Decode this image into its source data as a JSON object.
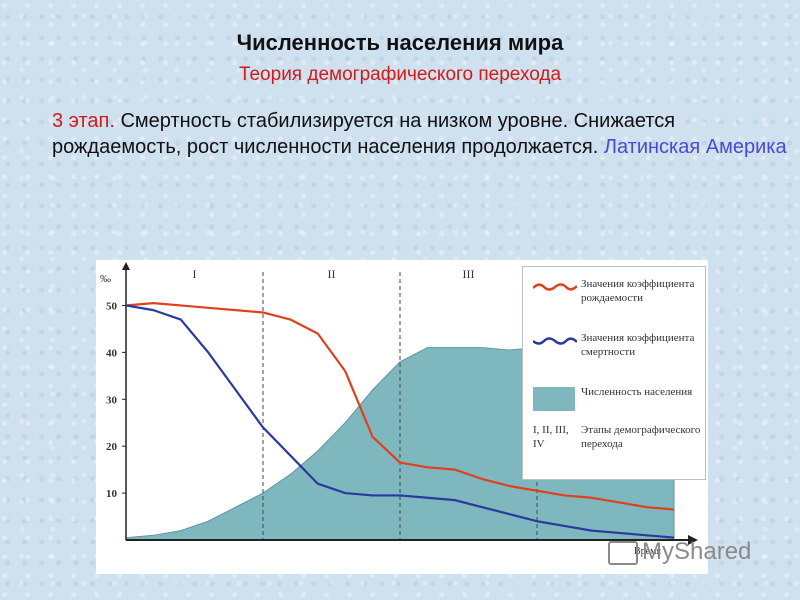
{
  "slide": {
    "title": "Численность населения мира",
    "subtitle": "Теория демографического перехода",
    "stage_number": "3 этап.",
    "stage_description": "Смертность стабилизируется на низком уровне. Снижается рождаемость, рост численности  населения продолжается.",
    "stage_region": "Латинская Америка"
  },
  "chart_data": {
    "type": "line",
    "yunit": "‰",
    "xlabel": "Время",
    "yticks": [
      "50",
      "40",
      "30",
      "20",
      "10"
    ],
    "ylim": [
      0,
      55
    ],
    "stages": [
      "I",
      "II",
      "III",
      "IV"
    ],
    "x": [
      0,
      5,
      10,
      15,
      20,
      25,
      30,
      35,
      40,
      45,
      50,
      55,
      60,
      65,
      70,
      75,
      80,
      85,
      90,
      95,
      100
    ],
    "series": [
      {
        "name": "Значения коэффициента рождаемости",
        "color": "#e0401a",
        "values": [
          50,
          50.5,
          50,
          49.5,
          49,
          48.5,
          47,
          44,
          36,
          22,
          16.5,
          15.5,
          15,
          13,
          11.5,
          10.5,
          9.5,
          9,
          8,
          7,
          6.5
        ]
      },
      {
        "name": "Значения коэффициента смертности",
        "color": "#2a3aa0",
        "values": [
          50,
          49,
          47,
          40,
          32,
          24,
          18,
          12,
          10,
          9.5,
          9.5,
          9,
          8.5,
          7,
          5.5,
          4,
          3,
          2,
          1.5,
          1,
          0.5
        ]
      },
      {
        "name": "Численность населения",
        "color": "#7fb7bf",
        "values": [
          0.5,
          1,
          2,
          4,
          7,
          10,
          14,
          19,
          25,
          32,
          38,
          41,
          41,
          41,
          40.5,
          41,
          38,
          34,
          33,
          33,
          33
        ]
      }
    ],
    "legend_stages_label": "I, II, III, IV",
    "legend_stages_text": "Этапы демографического перехода"
  },
  "watermark": "MyShared"
}
